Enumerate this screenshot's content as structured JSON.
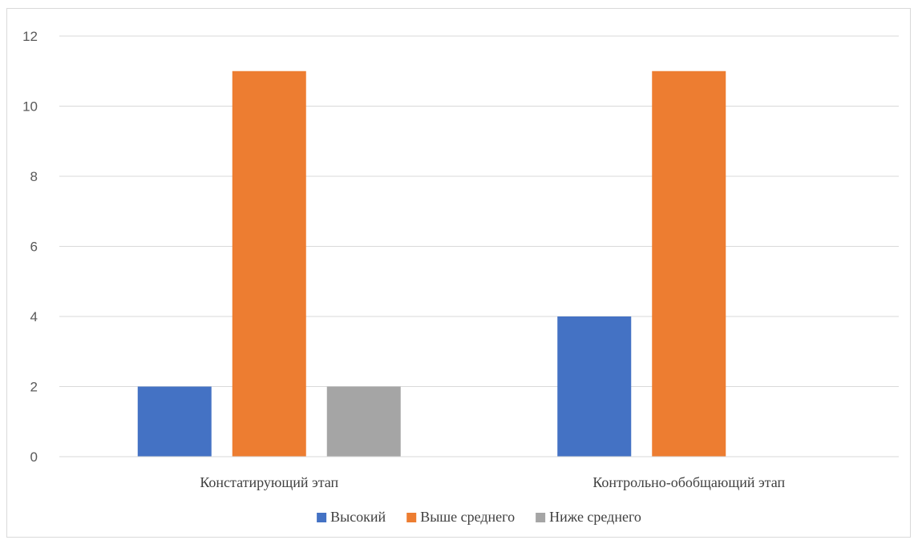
{
  "chart_data": {
    "type": "bar",
    "title": "",
    "xlabel": "",
    "ylabel": "",
    "categories": [
      "Констатирующий этап",
      "Контрольно-обобщающий этап"
    ],
    "series": [
      {
        "name": "Высокий",
        "values": [
          2,
          4
        ],
        "color": "#4472C4"
      },
      {
        "name": "Выше среднего",
        "values": [
          11,
          11
        ],
        "color": "#ED7D31"
      },
      {
        "name": "Ниже среднего",
        "values": [
          2,
          0
        ],
        "color": "#A5A5A5"
      }
    ],
    "ylim": [
      0,
      12
    ],
    "yticks": [
      0,
      2,
      4,
      6,
      8,
      10,
      12
    ],
    "grid": true,
    "legend": "bottom"
  }
}
